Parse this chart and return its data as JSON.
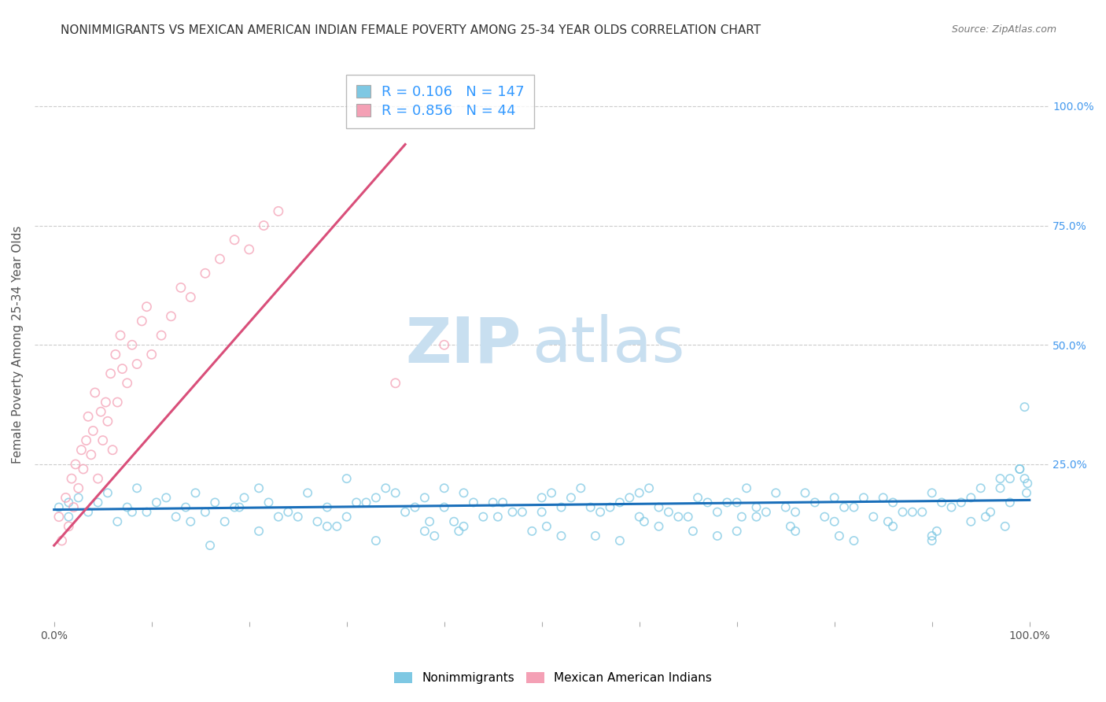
{
  "title": "NONIMMIGRANTS VS MEXICAN AMERICAN INDIAN FEMALE POVERTY AMONG 25-34 YEAR OLDS CORRELATION CHART",
  "source": "Source: ZipAtlas.com",
  "ylabel": "Female Poverty Among 25-34 Year Olds",
  "xlim": [
    -0.02,
    1.02
  ],
  "ylim": [
    -0.08,
    1.08
  ],
  "ytick_labels_right": [
    "100.0%",
    "75.0%",
    "50.0%",
    "25.0%"
  ],
  "ytick_vals_right": [
    1.0,
    0.75,
    0.5,
    0.25
  ],
  "blue_R": 0.106,
  "blue_N": 147,
  "pink_R": 0.856,
  "pink_N": 44,
  "blue_color": "#7ec8e3",
  "pink_color": "#f4a0b5",
  "blue_line_color": "#1a6fba",
  "pink_line_color": "#d94f7a",
  "legend1_label": "Nonimmigrants",
  "legend2_label": "Mexican American Indians",
  "watermark_zip": "ZIP",
  "watermark_atlas": "atlas",
  "watermark_color": "#c8dff0",
  "background_color": "#ffffff",
  "grid_color": "#cccccc",
  "title_fontsize": 11,
  "axis_label_fontsize": 11,
  "tick_fontsize": 10,
  "blue_scatter_x": [
    0.005,
    0.015,
    0.025,
    0.035,
    0.045,
    0.055,
    0.065,
    0.075,
    0.085,
    0.095,
    0.105,
    0.115,
    0.125,
    0.135,
    0.145,
    0.155,
    0.165,
    0.175,
    0.185,
    0.195,
    0.21,
    0.22,
    0.24,
    0.26,
    0.28,
    0.3,
    0.32,
    0.34,
    0.36,
    0.38,
    0.4,
    0.42,
    0.44,
    0.46,
    0.48,
    0.5,
    0.52,
    0.54,
    0.56,
    0.58,
    0.6,
    0.62,
    0.64,
    0.66,
    0.68,
    0.7,
    0.72,
    0.74,
    0.76,
    0.78,
    0.8,
    0.82,
    0.84,
    0.86,
    0.88,
    0.9,
    0.92,
    0.94,
    0.96,
    0.98,
    0.3,
    0.33,
    0.37,
    0.4,
    0.43,
    0.47,
    0.51,
    0.55,
    0.59,
    0.63,
    0.67,
    0.71,
    0.75,
    0.79,
    0.83,
    0.87,
    0.91,
    0.95,
    0.98,
    0.99,
    0.35,
    0.45,
    0.5,
    0.53,
    0.57,
    0.61,
    0.65,
    0.69,
    0.73,
    0.77,
    0.81,
    0.85,
    0.89,
    0.93,
    0.97,
    0.99,
    0.995,
    0.995,
    0.997,
    0.998,
    0.25,
    0.29,
    0.31,
    0.39,
    0.41,
    0.49,
    0.58,
    0.62,
    0.68,
    0.72,
    0.76,
    0.82,
    0.86,
    0.9,
    0.94,
    0.97,
    0.385,
    0.415,
    0.455,
    0.505,
    0.555,
    0.605,
    0.655,
    0.705,
    0.755,
    0.805,
    0.855,
    0.905,
    0.955,
    0.975,
    0.16,
    0.21,
    0.27,
    0.33,
    0.42,
    0.52,
    0.6,
    0.7,
    0.8,
    0.9,
    0.015,
    0.08,
    0.14,
    0.19,
    0.23,
    0.28,
    0.38
  ],
  "blue_scatter_y": [
    0.16,
    0.14,
    0.18,
    0.15,
    0.17,
    0.19,
    0.13,
    0.16,
    0.2,
    0.15,
    0.17,
    0.18,
    0.14,
    0.16,
    0.19,
    0.15,
    0.17,
    0.13,
    0.16,
    0.18,
    0.2,
    0.17,
    0.15,
    0.19,
    0.16,
    0.14,
    0.17,
    0.2,
    0.15,
    0.18,
    0.16,
    0.19,
    0.14,
    0.17,
    0.15,
    0.18,
    0.16,
    0.2,
    0.15,
    0.17,
    0.19,
    0.16,
    0.14,
    0.18,
    0.15,
    0.17,
    0.16,
    0.19,
    0.15,
    0.17,
    0.18,
    0.16,
    0.14,
    0.17,
    0.15,
    0.19,
    0.16,
    0.18,
    0.15,
    0.17,
    0.22,
    0.18,
    0.16,
    0.2,
    0.17,
    0.15,
    0.19,
    0.16,
    0.18,
    0.15,
    0.17,
    0.2,
    0.16,
    0.14,
    0.18,
    0.15,
    0.17,
    0.2,
    0.22,
    0.24,
    0.19,
    0.17,
    0.15,
    0.18,
    0.16,
    0.2,
    0.14,
    0.17,
    0.15,
    0.19,
    0.16,
    0.18,
    0.15,
    0.17,
    0.2,
    0.24,
    0.37,
    0.22,
    0.19,
    0.21,
    0.14,
    0.12,
    0.17,
    0.1,
    0.13,
    0.11,
    0.09,
    0.12,
    0.1,
    0.14,
    0.11,
    0.09,
    0.12,
    0.1,
    0.13,
    0.22,
    0.13,
    0.11,
    0.14,
    0.12,
    0.1,
    0.13,
    0.11,
    0.14,
    0.12,
    0.1,
    0.13,
    0.11,
    0.14,
    0.12,
    0.08,
    0.11,
    0.13,
    0.09,
    0.12,
    0.1,
    0.14,
    0.11,
    0.13,
    0.09,
    0.17,
    0.15,
    0.13,
    0.16,
    0.14,
    0.12,
    0.11
  ],
  "pink_scatter_x": [
    0.005,
    0.008,
    0.012,
    0.015,
    0.018,
    0.02,
    0.022,
    0.025,
    0.028,
    0.03,
    0.033,
    0.035,
    0.038,
    0.04,
    0.042,
    0.045,
    0.048,
    0.05,
    0.053,
    0.055,
    0.058,
    0.06,
    0.063,
    0.065,
    0.068,
    0.07,
    0.075,
    0.08,
    0.085,
    0.09,
    0.095,
    0.1,
    0.11,
    0.12,
    0.13,
    0.14,
    0.155,
    0.17,
    0.185,
    0.2,
    0.215,
    0.23,
    0.35,
    0.4
  ],
  "pink_scatter_y": [
    0.14,
    0.09,
    0.18,
    0.12,
    0.22,
    0.16,
    0.25,
    0.2,
    0.28,
    0.24,
    0.3,
    0.35,
    0.27,
    0.32,
    0.4,
    0.22,
    0.36,
    0.3,
    0.38,
    0.34,
    0.44,
    0.28,
    0.48,
    0.38,
    0.52,
    0.45,
    0.42,
    0.5,
    0.46,
    0.55,
    0.58,
    0.48,
    0.52,
    0.56,
    0.62,
    0.6,
    0.65,
    0.68,
    0.72,
    0.7,
    0.75,
    0.78,
    0.42,
    0.5
  ],
  "blue_trend_x": [
    0.0,
    1.0
  ],
  "blue_trend_y": [
    0.155,
    0.175
  ],
  "pink_trend_x": [
    0.0,
    0.36
  ],
  "pink_trend_y": [
    0.08,
    0.92
  ],
  "xtick_positions": [
    0.0,
    0.1,
    0.2,
    0.3,
    0.4,
    0.5,
    0.6,
    0.7,
    0.8,
    0.9,
    1.0
  ],
  "xtick_labels_show": {
    "0.0": "0.0%",
    "1.0": "100.0%"
  }
}
